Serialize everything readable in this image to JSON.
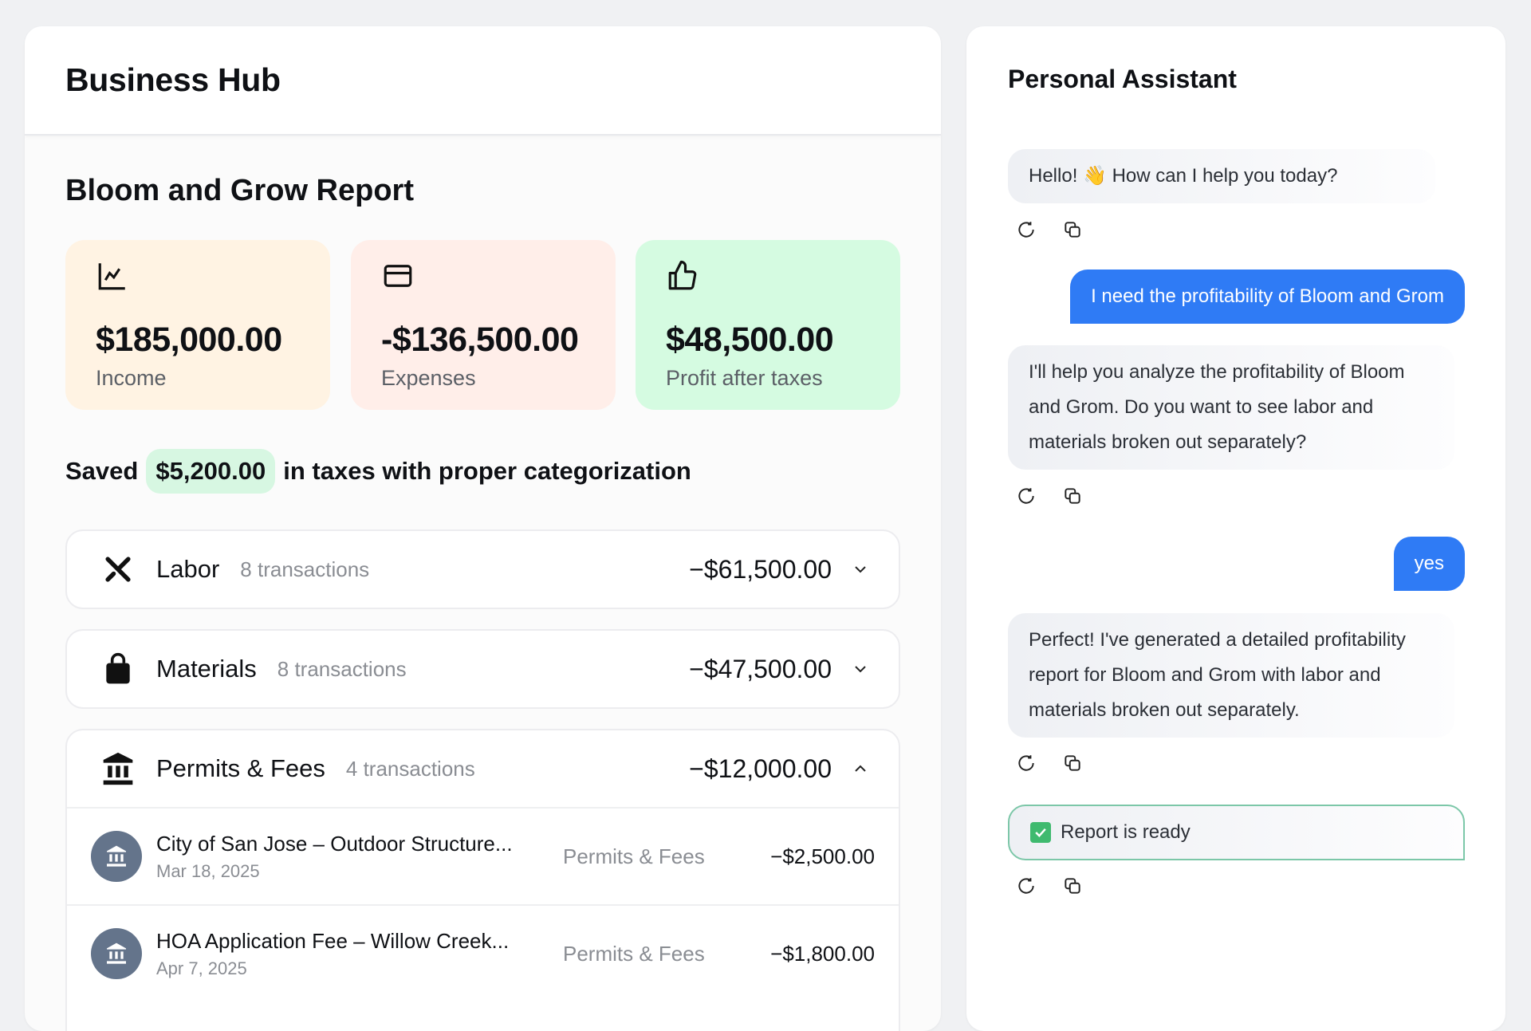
{
  "business_hub": {
    "title": "Business Hub",
    "report_title": "Bloom and Grow Report",
    "cards": [
      {
        "icon": "chart-line-icon",
        "amount": "$185,000.00",
        "label": "Income",
        "color": "#fff3e3"
      },
      {
        "icon": "credit-card-icon",
        "amount": "-$136,500.00",
        "label": "Expenses",
        "color": "#ffeee9"
      },
      {
        "icon": "thumbs-up-icon",
        "amount": "$48,500.00",
        "label": "Profit after taxes",
        "color": "#d5fbe1"
      }
    ],
    "savings": {
      "prefix": "Saved",
      "amount": "$5,200.00",
      "suffix": "in taxes with proper categorization"
    },
    "categories": [
      {
        "icon": "tools-icon",
        "name": "Labor",
        "count": "8 transactions",
        "amount": "−$61,500.00",
        "expanded": false
      },
      {
        "icon": "shopping-bag-icon",
        "name": "Materials",
        "count": "8 transactions",
        "amount": "−$47,500.00",
        "expanded": false
      },
      {
        "icon": "bank-icon",
        "name": "Permits & Fees",
        "count": "4 transactions",
        "amount": "−$12,000.00",
        "expanded": true,
        "transactions": [
          {
            "name": "City of San Jose – Outdoor Structure...",
            "date": "Mar 18, 2025",
            "category": "Permits & Fees",
            "amount": "−$2,500.00"
          },
          {
            "name": "HOA Application Fee – Willow Creek...",
            "date": "Apr 7, 2025",
            "category": "Permits & Fees",
            "amount": "−$1,800.00"
          }
        ]
      }
    ]
  },
  "assistant": {
    "title": "Personal Assistant",
    "messages": [
      {
        "role": "assistant",
        "text": "Hello! 👋 How can I help you today?"
      },
      {
        "role": "user",
        "text": "I need the profitability of Bloom and Grom"
      },
      {
        "role": "assistant",
        "text": "I'll help you analyze the profitability of Bloom and Grom. Do you want to see labor and materials broken out separately?"
      },
      {
        "role": "user",
        "text": "yes"
      },
      {
        "role": "assistant",
        "text": "Perfect! I've generated a detailed profitability report for Bloom and Grom with labor and materials broken out separately."
      },
      {
        "role": "assistant",
        "status": "Report is ready",
        "accent": "#7cc7a8"
      }
    ]
  }
}
